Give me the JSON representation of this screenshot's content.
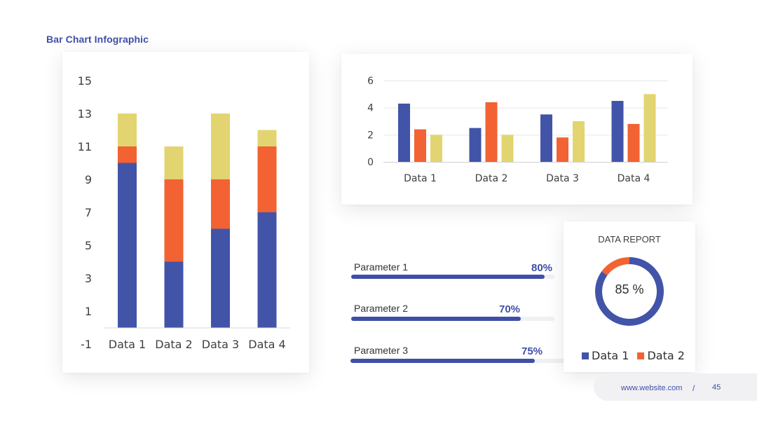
{
  "page": {
    "title": "Bar Chart  Infographic"
  },
  "colors": {
    "data1": "#4254a8",
    "data2": "#f26233",
    "data3": "#e2d470",
    "accent": "#3f4fa8"
  },
  "chart_data": [
    {
      "type": "bar",
      "stacked": true,
      "categories": [
        "Data 1",
        "Data 2",
        "Data 3",
        "Data 4"
      ],
      "y_ticks": [
        "15",
        "13",
        "11",
        "9",
        "7",
        "5",
        "3",
        "1",
        "-1"
      ],
      "ylim": [
        -1,
        15
      ],
      "grid": false,
      "series": [
        {
          "values": [
            10,
            4,
            6,
            7
          ]
        },
        {
          "values": [
            1,
            5,
            3,
            4
          ]
        },
        {
          "values": [
            2,
            2,
            4,
            1
          ]
        }
      ]
    },
    {
      "type": "bar",
      "stacked": false,
      "categories": [
        "Data 1",
        "Data 2",
        "Data 3",
        "Data 4"
      ],
      "y_ticks": [
        "6",
        "4",
        "2",
        "0"
      ],
      "ylim": [
        0,
        6
      ],
      "grid": true,
      "series": [
        {
          "values": [
            4.3,
            2.5,
            3.5,
            4.5
          ]
        },
        {
          "values": [
            2.4,
            4.4,
            1.8,
            2.8
          ]
        },
        {
          "values": [
            2,
            2,
            3,
            5
          ]
        }
      ]
    },
    {
      "type": "pie",
      "donut": true,
      "title": "DATA REPORT",
      "center_label": "85 %",
      "slices": [
        {
          "name": "Data 1",
          "value": 85
        },
        {
          "name": "Data 2",
          "value": 15
        }
      ]
    }
  ],
  "parameters": [
    {
      "label": "Parameter 1",
      "value_text": "80%",
      "value": 0.8
    },
    {
      "label": "Parameter 2",
      "value_text": "70%",
      "value": 0.7
    },
    {
      "label": "Parameter 3",
      "value_text": "75%",
      "value": 0.75
    }
  ],
  "footer": {
    "url": "www.website.com",
    "separator": "/",
    "page_number": "45"
  }
}
